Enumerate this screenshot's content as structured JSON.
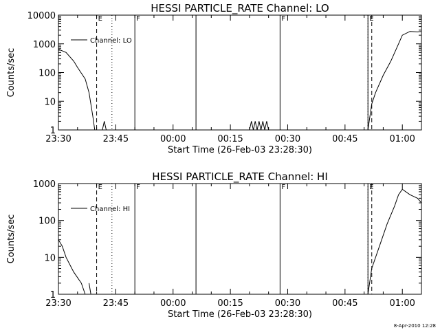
{
  "stamp": "8-Apr-2010 12:28",
  "chart_data": [
    {
      "type": "line",
      "title": "HESSI PARTICLE_RATE Channel: LO",
      "xlabel": "Start Time (26-Feb-03 23:28:30)",
      "ylabel": "Counts/sec",
      "yscale": "log",
      "ylim": [
        1,
        10000
      ],
      "yticks": [
        1,
        10,
        100,
        1000,
        10000
      ],
      "ytick_labels": [
        "1",
        "10",
        "100",
        "1000",
        "10000"
      ],
      "xlim": [
        "23:30",
        "01:05"
      ],
      "xticks": [
        "23:30",
        "23:45",
        "00:00",
        "00:15",
        "00:30",
        "00:45",
        "01:00"
      ],
      "legend": {
        "label": "Channel: LO",
        "position": "top-left"
      },
      "flags": [
        "E",
        "F",
        "F",
        "E"
      ],
      "markers": [
        {
          "time": "23:40",
          "style": "dashed"
        },
        {
          "time": "23:44",
          "style": "dotted"
        },
        {
          "time": "23:50",
          "style": "solid"
        },
        {
          "time": "00:06",
          "style": "solid"
        },
        {
          "time": "00:28",
          "style": "solid"
        },
        {
          "time": "00:51",
          "style": "solid"
        },
        {
          "time": "00:51",
          "style": "dotted"
        },
        {
          "time": "00:52",
          "style": "dashed"
        },
        {
          "time": "01:05",
          "style": "dashdot"
        }
      ],
      "series": [
        {
          "segments": [
            [
              [
                "23:28",
                800
              ],
              [
                "23:30",
                650
              ],
              [
                "23:32",
                500
              ],
              [
                "23:34",
                250
              ],
              [
                "23:35",
                150
              ],
              [
                "23:37",
                60
              ],
              [
                "23:38",
                20
              ],
              [
                "23:39",
                3
              ],
              [
                "23:39:30",
                1
              ]
            ],
            [
              [
                "23:41:30",
                1
              ],
              [
                "23:42",
                2
              ],
              [
                "23:42:30",
                1
              ]
            ],
            [
              [
                "00:20",
                1
              ],
              [
                "00:20:30",
                2
              ],
              [
                "00:21",
                1
              ],
              [
                "00:21:30",
                2
              ],
              [
                "00:22",
                1
              ],
              [
                "00:22:30",
                2
              ],
              [
                "00:23",
                1
              ],
              [
                "00:23:30",
                2
              ],
              [
                "00:24",
                1
              ],
              [
                "00:24:30",
                2
              ],
              [
                "00:25",
                1
              ]
            ],
            [
              [
                "00:51",
                1
              ],
              [
                "00:52",
                8
              ],
              [
                "00:53",
                20
              ],
              [
                "00:55",
                80
              ],
              [
                "00:57",
                250
              ],
              [
                "00:59",
                1000
              ],
              [
                "01:00",
                2000
              ],
              [
                "01:02",
                2700
              ],
              [
                "01:04",
                2600
              ],
              [
                "01:05",
                2700
              ]
            ]
          ]
        }
      ]
    },
    {
      "type": "line",
      "title": "HESSI PARTICLE_RATE Channel: HI",
      "xlabel": "Start Time (26-Feb-03 23:28:30)",
      "ylabel": "Counts/sec",
      "yscale": "log",
      "ylim": [
        1,
        1000
      ],
      "yticks": [
        1,
        10,
        100,
        1000
      ],
      "ytick_labels": [
        "1",
        "10",
        "100",
        "1000"
      ],
      "xlim": [
        "23:30",
        "01:05"
      ],
      "xticks": [
        "23:30",
        "23:45",
        "00:00",
        "00:15",
        "00:30",
        "00:45",
        "01:00"
      ],
      "legend": {
        "label": "Channel: HI",
        "position": "top-left"
      },
      "flags": [
        "E",
        "F",
        "F",
        "E"
      ],
      "markers": [
        {
          "time": "23:40",
          "style": "dashed"
        },
        {
          "time": "23:44",
          "style": "dotted"
        },
        {
          "time": "23:50",
          "style": "solid"
        },
        {
          "time": "00:06",
          "style": "solid"
        },
        {
          "time": "00:28",
          "style": "solid"
        },
        {
          "time": "00:51",
          "style": "solid"
        },
        {
          "time": "00:51",
          "style": "dotted"
        },
        {
          "time": "00:52",
          "style": "dashed"
        },
        {
          "time": "01:05",
          "style": "dashdot"
        }
      ],
      "series": [
        {
          "segments": [
            [
              [
                "23:28",
                45
              ],
              [
                "23:30",
                30
              ],
              [
                "23:31",
                20
              ],
              [
                "23:32",
                10
              ],
              [
                "23:34",
                4
              ],
              [
                "23:36",
                2
              ],
              [
                "23:37",
                1
              ]
            ],
            [
              [
                "23:38",
                2
              ],
              [
                "23:38:30",
                1
              ]
            ],
            [
              [
                "00:51",
                1
              ],
              [
                "00:52",
                5
              ],
              [
                "00:54",
                20
              ],
              [
                "00:56",
                80
              ],
              [
                "00:58",
                250
              ],
              [
                "00:59",
                500
              ],
              [
                "01:00",
                700
              ],
              [
                "01:02",
                500
              ],
              [
                "01:04",
                400
              ],
              [
                "01:05",
                300
              ]
            ]
          ]
        }
      ]
    }
  ]
}
